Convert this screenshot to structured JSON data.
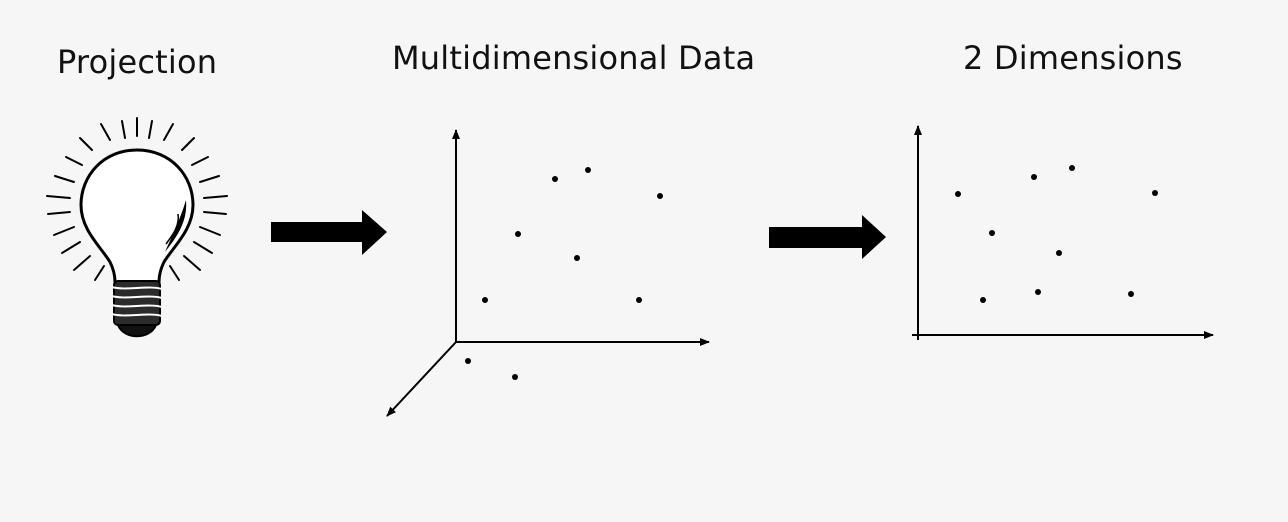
{
  "panels": {
    "projection": {
      "title": "Projection",
      "icon": "lightbulb-icon"
    },
    "multidimensional": {
      "title": "Multidimensional Data"
    },
    "two_dimensions": {
      "title": "2 Dimensions"
    }
  },
  "arrows": [
    "right-arrow-icon",
    "right-arrow-icon"
  ],
  "colors": {
    "background": "#f6f6f6",
    "ink": "#000000"
  }
}
